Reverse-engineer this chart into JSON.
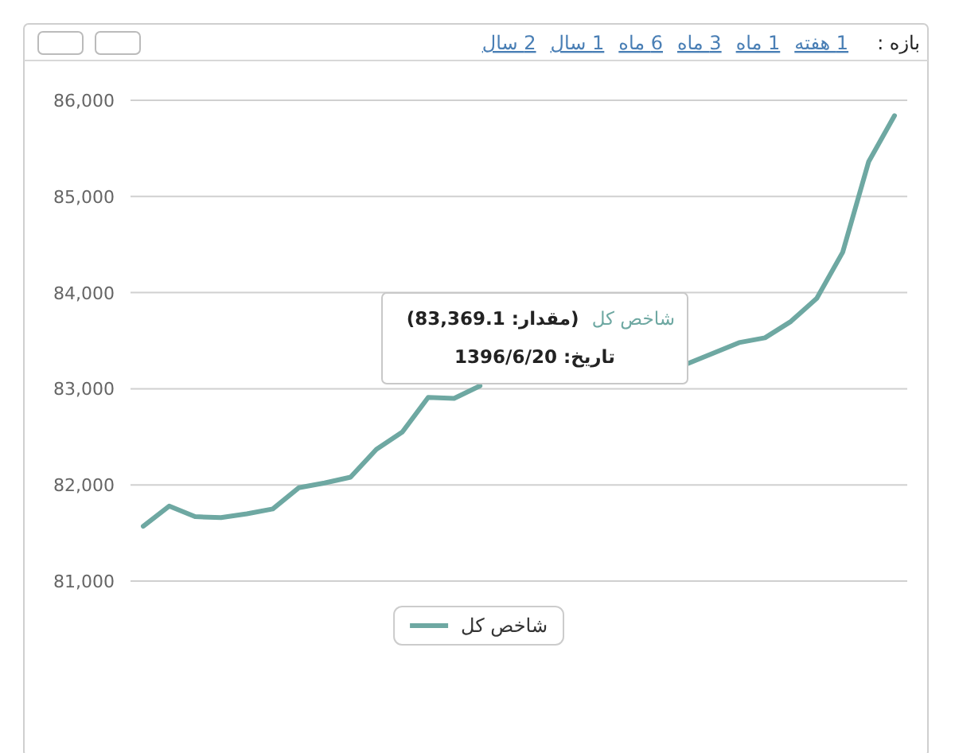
{
  "chart_data": {
    "type": "line",
    "categories": [
      null,
      null,
      null,
      null,
      null,
      null,
      null,
      null,
      null,
      null,
      null,
      null,
      null,
      null,
      null,
      null,
      null,
      null,
      null,
      null,
      null,
      null,
      null,
      null,
      null,
      null,
      null,
      null,
      null,
      null
    ],
    "series": [
      {
        "name": "شاخص کل",
        "color": "#6ea8a2",
        "values": [
          81570,
          81780,
          81670,
          81660,
          81700,
          81750,
          81970,
          82020,
          82080,
          82370,
          82550,
          82910,
          82900,
          83030,
          null,
          null,
          null,
          null,
          null,
          null,
          null,
          83260,
          83370,
          83480,
          83530,
          83700,
          83940,
          84420,
          85360,
          85840
        ]
      }
    ],
    "ylim": [
      81000,
      86000
    ],
    "yticks": [
      {
        "value": 81000,
        "label": "81,000"
      },
      {
        "value": 82000,
        "label": "82,000"
      },
      {
        "value": 83000,
        "label": "83,000"
      },
      {
        "value": 84000,
        "label": "84,000"
      },
      {
        "value": 85000,
        "label": "85,000"
      },
      {
        "value": 86000,
        "label": "86,000"
      }
    ],
    "grid": "y",
    "legend": "bottom",
    "tick_labels": "y",
    "annotations": [
      "بازه :",
      "1 هفته",
      "1 ماه",
      "3 ماه",
      "6 ماه",
      "1 سال",
      "2 سال",
      "(مقدار: 83,369.1)",
      "تاریخ: 1396/6/20"
    ]
  }
}
